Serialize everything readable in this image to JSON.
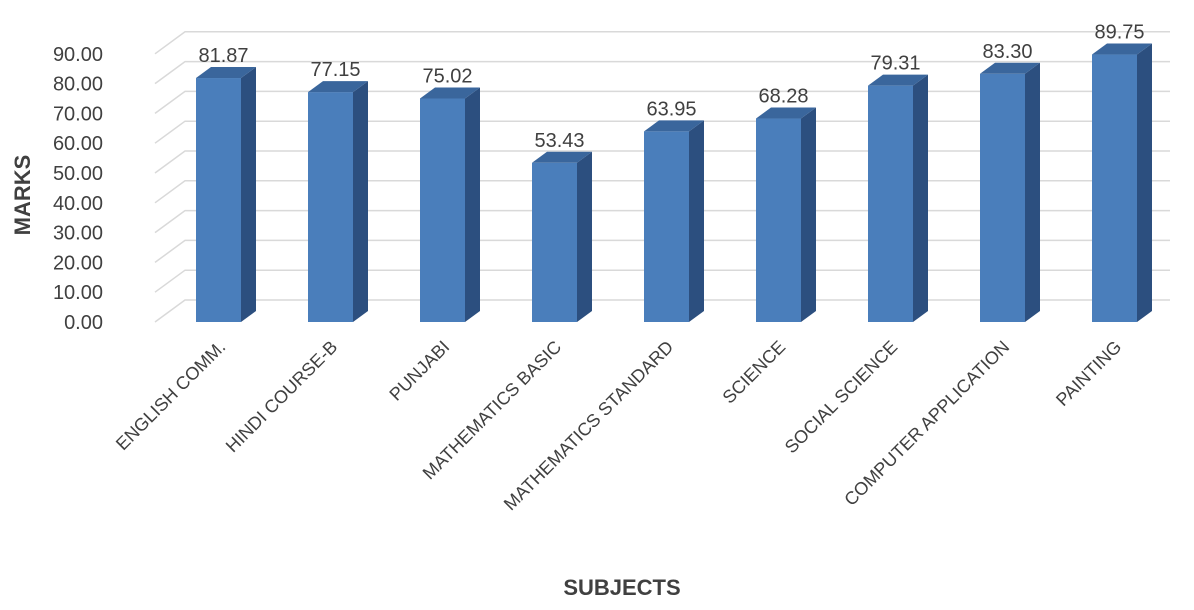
{
  "chart_data": {
    "type": "bar",
    "style": "3d-column",
    "title": "",
    "xlabel": "SUBJECTS",
    "ylabel": "MARKS",
    "ylim": [
      0,
      90
    ],
    "ytick_step": 10,
    "ytick_labels": [
      "0.00",
      "10.00",
      "20.00",
      "30.00",
      "40.00",
      "50.00",
      "60.00",
      "70.00",
      "80.00",
      "90.00"
    ],
    "grid": true,
    "legend": "none",
    "bar_color": "#4a7ebb",
    "bar_side_color": "#2c4f7f",
    "bar_top_color": "#3a669c",
    "categories": [
      "ENGLISH COMM.",
      "HINDI COURSE-B",
      "PUNJABI",
      "MATHEMATICS BASIC",
      "MATHEMATICS STANDARD",
      "SCIENCE",
      "SOCIAL SCIENCE",
      "COMPUTER APPLICATION",
      "PAINTING"
    ],
    "values": [
      81.87,
      77.15,
      75.02,
      53.43,
      63.95,
      68.28,
      79.31,
      83.3,
      89.75
    ],
    "data_labels": [
      "81.87",
      "77.15",
      "75.02",
      "53.43",
      "63.95",
      "68.28",
      "79.31",
      "83.30",
      "89.75"
    ]
  }
}
